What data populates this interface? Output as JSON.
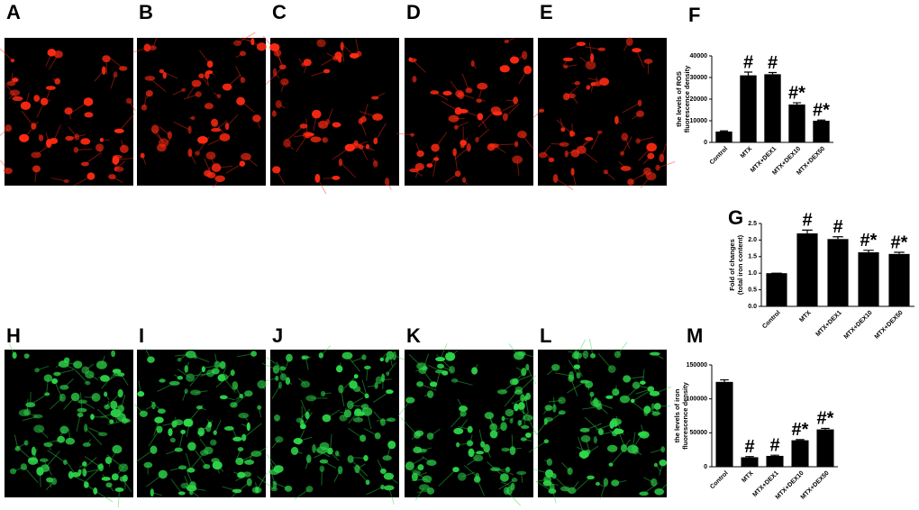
{
  "ros_images": {
    "labels": [
      "A",
      "B",
      "C",
      "D",
      "E"
    ],
    "color": "#ff2a12"
  },
  "iron_images": {
    "labels": [
      "H",
      "I",
      "J",
      "K",
      "L"
    ],
    "color": "#2ed84a"
  },
  "chart_data": [
    {
      "type": "bar",
      "panel": "F",
      "ylabel": [
        "the levels of ROS",
        "fluorescence density"
      ],
      "categories": [
        "Control",
        "MTX",
        "MTX+DEX1",
        "MTX+DEX10",
        "MTX+DEX50"
      ],
      "values": [
        5000,
        31000,
        31500,
        17500,
        10000
      ],
      "errors": [
        300,
        1500,
        800,
        800,
        300
      ],
      "annotations": [
        null,
        "#",
        "#",
        "#*",
        "#*"
      ],
      "color": "#000000",
      "ylim": [
        0,
        40000
      ],
      "yticks": [
        0,
        10000,
        20000,
        30000,
        40000
      ]
    },
    {
      "type": "bar",
      "panel": "G",
      "ylabel": [
        "Fold of changes",
        "(total iron content)"
      ],
      "categories": [
        "Control",
        "MTX",
        "MTX+DEX1",
        "MTX+DEX10",
        "MTX+DEX50"
      ],
      "values": [
        1.0,
        2.2,
        2.03,
        1.63,
        1.58
      ],
      "errors": [
        0,
        0.1,
        0.07,
        0.06,
        0.05
      ],
      "annotations": [
        null,
        "#",
        "#",
        "#*",
        "#*"
      ],
      "color": "#000000",
      "ylim": [
        0,
        2.5
      ],
      "yticks": [
        {
          "value": 0,
          "label": "0.0"
        },
        0.5,
        {
          "value": 1,
          "label": "1.0"
        },
        1.5,
        {
          "value": 2,
          "label": "2.0"
        },
        2.5
      ]
    },
    {
      "type": "bar",
      "panel": "M",
      "ylabel": [
        "the levels of iron",
        "fluorescence density"
      ],
      "categories": [
        "Control",
        "MTX",
        "MTX+DEX1",
        "MTX+DEX10",
        "MTX+DEX50"
      ],
      "values": [
        125000,
        14000,
        16000,
        39000,
        55000
      ],
      "errors": [
        3000,
        1000,
        1000,
        1000,
        1500
      ],
      "annotations": [
        null,
        "#",
        "#",
        "#*",
        "#*"
      ],
      "color": "#000000",
      "ylim": [
        0,
        150000
      ],
      "yticks": [
        0,
        50000,
        100000,
        150000
      ]
    }
  ]
}
